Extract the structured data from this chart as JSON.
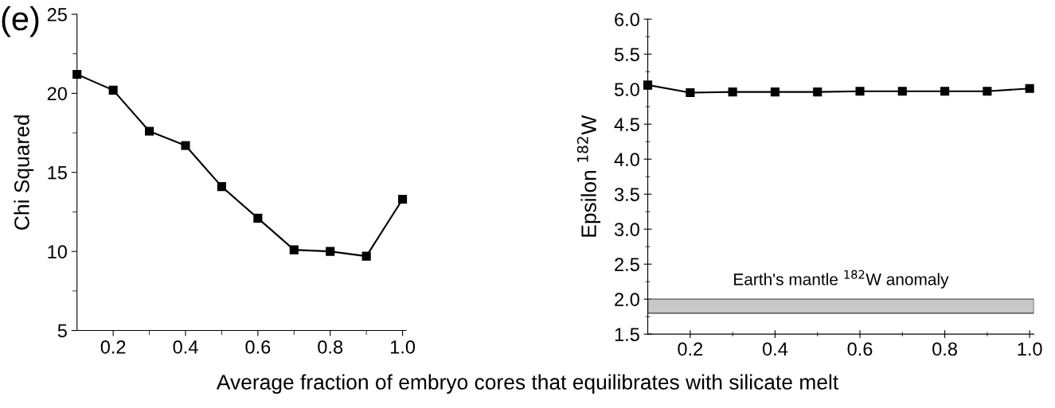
{
  "chart_data": [
    {
      "type": "line",
      "ylabel": "Chi Squared",
      "x": [
        0.1,
        0.2,
        0.3,
        0.4,
        0.5,
        0.6,
        0.7,
        0.8,
        0.9,
        1.0
      ],
      "series": [
        {
          "color": "#000000",
          "values": [
            21.2,
            20.2,
            17.6,
            16.7,
            14.1,
            12.1,
            10.1,
            10.0,
            9.7,
            13.3
          ]
        }
      ],
      "marker": "square",
      "line_style": "solid",
      "grid": false,
      "legend": false,
      "xlim": [
        0.1,
        1.01
      ],
      "ylim": [
        5,
        25
      ],
      "xticks": [
        {
          "value": 0.2,
          "label": "0.2"
        },
        {
          "value": 0.3,
          "label": null
        },
        {
          "value": 0.4,
          "label": "0.4"
        },
        {
          "value": 0.5,
          "label": null
        },
        {
          "value": 0.6,
          "label": "0.6"
        },
        {
          "value": 0.7,
          "label": null
        },
        {
          "value": 0.8,
          "label": "0.8"
        },
        {
          "value": 0.9,
          "label": null
        },
        {
          "value": 1.0,
          "label": "1.0"
        }
      ],
      "yticks": [
        5,
        {
          "value": 7.5,
          "label": null
        },
        10,
        {
          "value": 12.5,
          "label": null
        },
        15,
        {
          "value": 17.5,
          "label": null
        },
        20,
        {
          "value": 22.5,
          "label": null
        },
        25
      ],
      "annotations": [
        "(e)",
        "Average fraction of embryo cores that equilibrates with silicate melt"
      ]
    },
    {
      "type": "line",
      "ylabel": "Epsilon $^{182}$W",
      "x": [
        0.1,
        0.2,
        0.3,
        0.4,
        0.5,
        0.6,
        0.7,
        0.8,
        0.9,
        1.0
      ],
      "series": [
        {
          "color": "#000000",
          "values": [
            5.06,
            4.95,
            4.96,
            4.96,
            4.96,
            4.97,
            4.97,
            4.97,
            4.97,
            5.01
          ]
        }
      ],
      "marker": "square",
      "line_style": "solid",
      "grid": false,
      "legend": false,
      "xlim": [
        0.1,
        1.01
      ],
      "ylim": [
        1.5,
        6.0
      ],
      "xticks": [
        {
          "value": 0.2,
          "label": "0.2"
        },
        {
          "value": 0.3,
          "label": null
        },
        {
          "value": 0.4,
          "label": "0.4"
        },
        {
          "value": 0.5,
          "label": null
        },
        {
          "value": 0.6,
          "label": "0.6"
        },
        {
          "value": 0.7,
          "label": null
        },
        {
          "value": 0.8,
          "label": "0.8"
        },
        {
          "value": 0.9,
          "label": null
        },
        {
          "value": 1.0,
          "label": "1.0"
        }
      ],
      "yticks": [
        {
          "value": 1.5,
          "label": "1.5"
        },
        {
          "value": 1.75,
          "label": null
        },
        {
          "value": 2.0,
          "label": "2.0"
        },
        {
          "value": 2.25,
          "label": null
        },
        {
          "value": 2.5,
          "label": "2.5"
        },
        {
          "value": 2.75,
          "label": null
        },
        {
          "value": 3.0,
          "label": "3.0"
        },
        {
          "value": 3.25,
          "label": null
        },
        {
          "value": 3.5,
          "label": "3.5"
        },
        {
          "value": 3.75,
          "label": null
        },
        {
          "value": 4.0,
          "label": "4.0"
        },
        {
          "value": 4.25,
          "label": null
        },
        {
          "value": 4.5,
          "label": "4.5"
        },
        {
          "value": 4.75,
          "label": null
        },
        {
          "value": 5.0,
          "label": "5.0"
        },
        {
          "value": 5.25,
          "label": null
        },
        {
          "value": 5.5,
          "label": "5.5"
        },
        {
          "value": 5.75,
          "label": null
        },
        {
          "value": 6.0,
          "label": "6.0"
        }
      ],
      "bands": [
        {
          "axis": "y",
          "from": 1.8,
          "to": 2.0,
          "label": "Earth's mantle $^{182}$W anomaly",
          "color": "#c8c8c8"
        }
      ]
    }
  ]
}
